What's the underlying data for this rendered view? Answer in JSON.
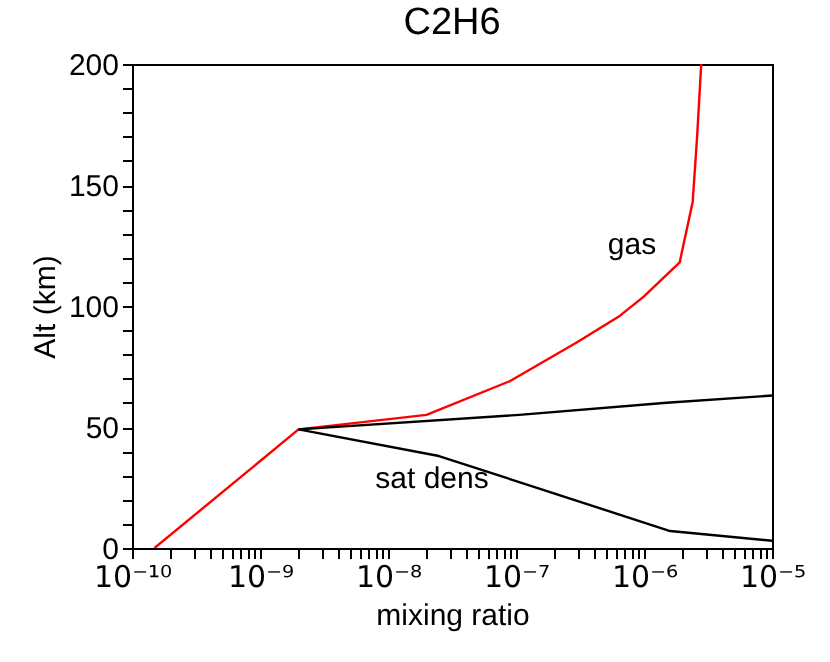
{
  "chart_data": {
    "type": "line",
    "title": "C2H6",
    "xlabel": "mixing ratio",
    "ylabel": "Alt (km)",
    "log": "x",
    "series": [
      {
        "color": "#ff0000",
        "x": [
          1.5e-10,
          2e-09,
          2e-08,
          9e-08,
          3e-07,
          6.5e-07,
          1e-06,
          1.9e-06,
          2.4e-06,
          2.6e-06,
          2.8e-06
        ],
        "values": [
          0,
          49,
          55,
          69,
          85,
          96,
          104,
          118,
          143,
          170,
          200
        ]
      },
      {
        "color": "#000000",
        "x": [
          2e-09,
          1.06e-07,
          1.5e-06,
          1e-05
        ],
        "values": [
          49,
          55,
          60,
          63
        ]
      },
      {
        "color": "#000000",
        "x": [
          2e-09,
          2.5e-08,
          1.6e-06,
          1e-05
        ],
        "values": [
          49,
          38,
          7,
          3
        ]
      }
    ],
    "annotations": [
      "gas",
      "sat dens"
    ],
    "xlim": [
      1e-10,
      1e-05
    ],
    "xticks": [
      {
        "value": 1e-10,
        "label": "10⁻¹⁰"
      },
      {
        "value": 2e-10,
        "label": null
      },
      {
        "value": 3e-10,
        "label": null
      },
      {
        "value": 4e-10,
        "label": null
      },
      {
        "value": 5e-10,
        "label": null
      },
      {
        "value": 6e-10,
        "label": null
      },
      {
        "value": 7e-10,
        "label": null
      },
      {
        "value": 8e-10,
        "label": null
      },
      {
        "value": 9e-10,
        "label": null
      },
      {
        "value": 1e-09,
        "label": "10⁻⁹"
      },
      {
        "value": 2e-09,
        "label": null
      },
      {
        "value": 3e-09,
        "label": null
      },
      {
        "value": 4e-09,
        "label": null
      },
      {
        "value": 5e-09,
        "label": null
      },
      {
        "value": 6e-09,
        "label": null
      },
      {
        "value": 7e-09,
        "label": null
      },
      {
        "value": 8e-09,
        "label": null
      },
      {
        "value": 9e-09,
        "label": null
      },
      {
        "value": 1e-08,
        "label": "10⁻⁸"
      },
      {
        "value": 2e-08,
        "label": null
      },
      {
        "value": 3e-08,
        "label": null
      },
      {
        "value": 4e-08,
        "label": null
      },
      {
        "value": 5e-08,
        "label": null
      },
      {
        "value": 6e-08,
        "label": null
      },
      {
        "value": 7e-08,
        "label": null
      },
      {
        "value": 8e-08,
        "label": null
      },
      {
        "value": 9e-08,
        "label": null
      },
      {
        "value": 1e-07,
        "label": "10⁻⁷"
      },
      {
        "value": 2e-07,
        "label": null
      },
      {
        "value": 3e-07,
        "label": null
      },
      {
        "value": 4e-07,
        "label": null
      },
      {
        "value": 5e-07,
        "label": null
      },
      {
        "value": 6e-07,
        "label": null
      },
      {
        "value": 7e-07,
        "label": null
      },
      {
        "value": 8e-07,
        "label": null
      },
      {
        "value": 9e-07,
        "label": null
      },
      {
        "value": 1e-06,
        "label": "10⁻⁶"
      },
      {
        "value": 2e-06,
        "label": null
      },
      {
        "value": 3e-06,
        "label": null
      },
      {
        "value": 4e-06,
        "label": null
      },
      {
        "value": 5e-06,
        "label": null
      },
      {
        "value": 6e-06,
        "label": null
      },
      {
        "value": 7e-06,
        "label": null
      },
      {
        "value": 8e-06,
        "label": null
      },
      {
        "value": 9e-06,
        "label": null
      },
      {
        "value": 1e-05,
        "label": "10⁻⁵"
      }
    ],
    "ylim": [
      0,
      200
    ],
    "yticks": [
      0,
      {
        "value": 10,
        "label": null
      },
      {
        "value": 20,
        "label": null
      },
      {
        "value": 30,
        "label": null
      },
      {
        "value": 40,
        "label": null
      },
      50,
      {
        "value": 60,
        "label": null
      },
      {
        "value": 70,
        "label": null
      },
      {
        "value": 80,
        "label": null
      },
      {
        "value": 90,
        "label": null
      },
      100,
      {
        "value": 110,
        "label": null
      },
      {
        "value": 120,
        "label": null
      },
      {
        "value": 130,
        "label": null
      },
      {
        "value": 140,
        "label": null
      },
      150,
      {
        "value": 160,
        "label": null
      },
      {
        "value": 170,
        "label": null
      },
      {
        "value": 180,
        "label": null
      },
      {
        "value": 190,
        "label": null
      },
      200
    ],
    "grid": false,
    "marker": "none",
    "line_style": "solid"
  }
}
